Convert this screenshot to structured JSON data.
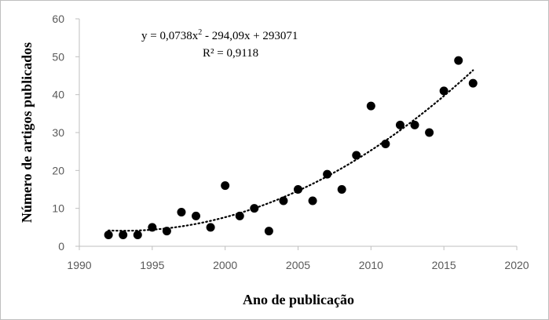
{
  "chart_data": {
    "type": "scatter",
    "xlabel": "Ano de publicação",
    "ylabel": "Número de artigos publicados",
    "xlim": [
      1990,
      2020
    ],
    "ylim": [
      0,
      60
    ],
    "x_ticks": [
      "1990",
      "1995",
      "2000",
      "2005",
      "2010",
      "2015",
      "2020"
    ],
    "y_ticks": [
      "0",
      "10",
      "20",
      "30",
      "40",
      "50",
      "60"
    ],
    "grid": false,
    "legend": "none",
    "point_color": "#000000",
    "points": [
      {
        "x": 1992,
        "y": 3
      },
      {
        "x": 1993,
        "y": 3
      },
      {
        "x": 1994,
        "y": 3
      },
      {
        "x": 1995,
        "y": 5
      },
      {
        "x": 1996,
        "y": 4
      },
      {
        "x": 1997,
        "y": 9
      },
      {
        "x": 1998,
        "y": 8
      },
      {
        "x": 1999,
        "y": 5
      },
      {
        "x": 2000,
        "y": 16
      },
      {
        "x": 2001,
        "y": 8
      },
      {
        "x": 2002,
        "y": 10
      },
      {
        "x": 2003,
        "y": 4
      },
      {
        "x": 2004,
        "y": 12
      },
      {
        "x": 2005,
        "y": 15
      },
      {
        "x": 2006,
        "y": 12
      },
      {
        "x": 2007,
        "y": 19
      },
      {
        "x": 2008,
        "y": 15
      },
      {
        "x": 2009,
        "y": 24
      },
      {
        "x": 2010,
        "y": 37
      },
      {
        "x": 2011,
        "y": 27
      },
      {
        "x": 2012,
        "y": 32
      },
      {
        "x": 2013,
        "y": 32
      },
      {
        "x": 2014,
        "y": 30
      },
      {
        "x": 2015,
        "y": 41
      },
      {
        "x": 2016,
        "y": 49
      },
      {
        "x": 2017,
        "y": 43
      }
    ],
    "trendline": {
      "type": "polynomial-2",
      "style": "dotted",
      "x_range": [
        1992,
        2017
      ],
      "equation_prefix": "y = 0,0738x",
      "equation_exponent": "2",
      "equation_suffix": " - 294,09x + 293071",
      "r_squared": "R² = 0,9118"
    }
  }
}
